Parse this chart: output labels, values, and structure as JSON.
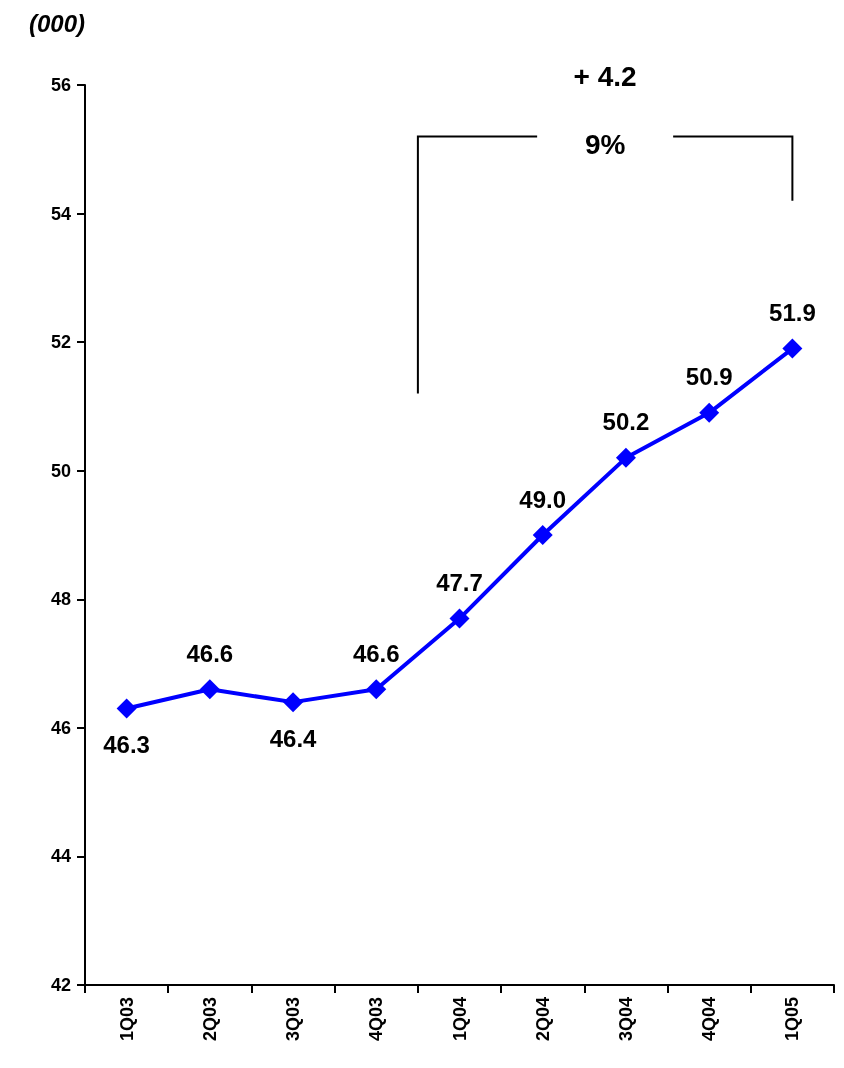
{
  "chart_data": {
    "type": "line",
    "ylabel": "(000)",
    "categories": [
      "1Q03",
      "2Q03",
      "3Q03",
      "4Q03",
      "1Q04",
      "2Q04",
      "3Q04",
      "4Q04",
      "1Q05"
    ],
    "series": [
      {
        "color": "#0000ff",
        "values": [
          46.3,
          46.6,
          46.4,
          46.6,
          47.7,
          49.0,
          50.2,
          50.9,
          51.9
        ],
        "value_labels": [
          "46.3",
          "46.6",
          "46.4",
          "46.6",
          "47.7",
          "49.0",
          "50.2",
          "50.9",
          "51.9"
        ]
      }
    ],
    "ylim": [
      42,
      56
    ],
    "yticks": [
      42,
      44,
      46,
      48,
      50,
      52,
      54,
      56
    ],
    "marker": "diamond",
    "line_style": "solid",
    "annotations": [
      "+ 4.2",
      "9%"
    ]
  }
}
